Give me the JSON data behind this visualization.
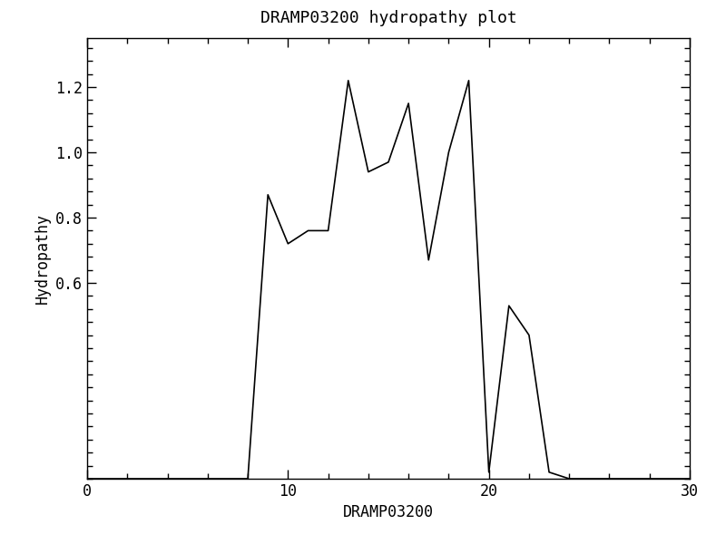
{
  "title": "DRAMP03200 hydropathy plot",
  "xlabel": "DRAMP03200",
  "ylabel": "Hydropathy",
  "x": [
    0,
    1,
    2,
    3,
    4,
    5,
    6,
    7,
    8,
    9,
    10,
    11,
    12,
    13,
    14,
    15,
    16,
    17,
    18,
    19,
    20,
    21,
    22,
    23,
    24,
    25,
    26,
    27,
    28,
    29,
    30
  ],
  "y": [
    0.0,
    0.0,
    0.0,
    0.0,
    0.0,
    0.0,
    0.0,
    0.0,
    0.0,
    0.87,
    0.72,
    0.76,
    0.76,
    1.22,
    0.94,
    0.97,
    1.15,
    0.67,
    1.0,
    1.22,
    0.02,
    0.53,
    0.44,
    0.02,
    0.0,
    0.0,
    0.0,
    0.0,
    0.0,
    0.0,
    0.0
  ],
  "xlim": [
    0,
    30
  ],
  "ylim": [
    0,
    1.35
  ],
  "xticks": [
    0,
    10,
    20,
    30
  ],
  "yticks": [
    0.6,
    0.8,
    1.0,
    1.2
  ],
  "line_color": "#000000",
  "line_width": 1.2,
  "background_color": "#ffffff",
  "title_fontsize": 13,
  "label_fontsize": 12,
  "tick_fontsize": 12,
  "font_family": "monospace"
}
